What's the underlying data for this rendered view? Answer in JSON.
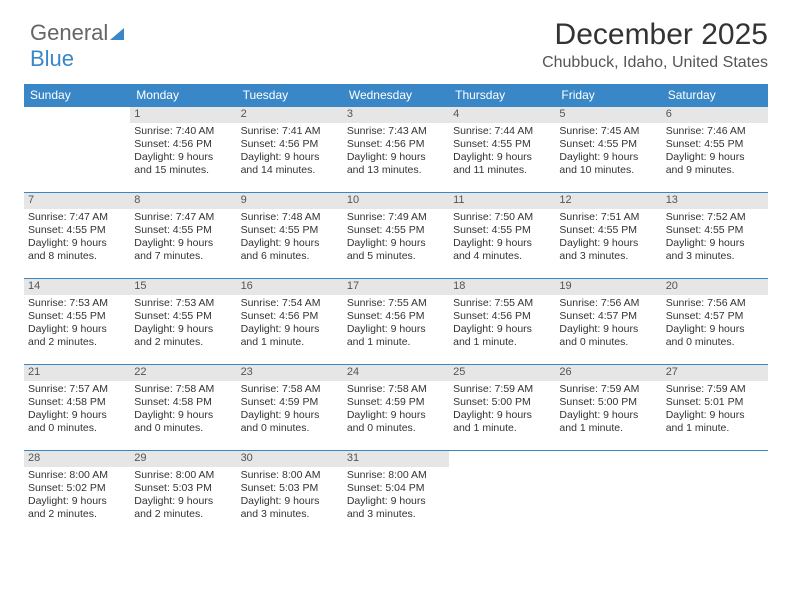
{
  "brand": {
    "part1": "General",
    "part2": "Blue"
  },
  "title": "December 2025",
  "location": "Chubbuck, Idaho, United States",
  "weekdays": [
    "Sunday",
    "Monday",
    "Tuesday",
    "Wednesday",
    "Thursday",
    "Friday",
    "Saturday"
  ],
  "colors": {
    "header_bg": "#3a87c7",
    "header_text": "#ffffff",
    "daynum_bg": "#e6e6e6",
    "border": "#3a87c7",
    "text": "#333333",
    "background": "#ffffff"
  },
  "weeks": [
    [
      null,
      {
        "n": "1",
        "sr": "Sunrise: 7:40 AM",
        "ss": "Sunset: 4:56 PM",
        "dl": "Daylight: 9 hours and 15 minutes."
      },
      {
        "n": "2",
        "sr": "Sunrise: 7:41 AM",
        "ss": "Sunset: 4:56 PM",
        "dl": "Daylight: 9 hours and 14 minutes."
      },
      {
        "n": "3",
        "sr": "Sunrise: 7:43 AM",
        "ss": "Sunset: 4:56 PM",
        "dl": "Daylight: 9 hours and 13 minutes."
      },
      {
        "n": "4",
        "sr": "Sunrise: 7:44 AM",
        "ss": "Sunset: 4:55 PM",
        "dl": "Daylight: 9 hours and 11 minutes."
      },
      {
        "n": "5",
        "sr": "Sunrise: 7:45 AM",
        "ss": "Sunset: 4:55 PM",
        "dl": "Daylight: 9 hours and 10 minutes."
      },
      {
        "n": "6",
        "sr": "Sunrise: 7:46 AM",
        "ss": "Sunset: 4:55 PM",
        "dl": "Daylight: 9 hours and 9 minutes."
      }
    ],
    [
      {
        "n": "7",
        "sr": "Sunrise: 7:47 AM",
        "ss": "Sunset: 4:55 PM",
        "dl": "Daylight: 9 hours and 8 minutes."
      },
      {
        "n": "8",
        "sr": "Sunrise: 7:47 AM",
        "ss": "Sunset: 4:55 PM",
        "dl": "Daylight: 9 hours and 7 minutes."
      },
      {
        "n": "9",
        "sr": "Sunrise: 7:48 AM",
        "ss": "Sunset: 4:55 PM",
        "dl": "Daylight: 9 hours and 6 minutes."
      },
      {
        "n": "10",
        "sr": "Sunrise: 7:49 AM",
        "ss": "Sunset: 4:55 PM",
        "dl": "Daylight: 9 hours and 5 minutes."
      },
      {
        "n": "11",
        "sr": "Sunrise: 7:50 AM",
        "ss": "Sunset: 4:55 PM",
        "dl": "Daylight: 9 hours and 4 minutes."
      },
      {
        "n": "12",
        "sr": "Sunrise: 7:51 AM",
        "ss": "Sunset: 4:55 PM",
        "dl": "Daylight: 9 hours and 3 minutes."
      },
      {
        "n": "13",
        "sr": "Sunrise: 7:52 AM",
        "ss": "Sunset: 4:55 PM",
        "dl": "Daylight: 9 hours and 3 minutes."
      }
    ],
    [
      {
        "n": "14",
        "sr": "Sunrise: 7:53 AM",
        "ss": "Sunset: 4:55 PM",
        "dl": "Daylight: 9 hours and 2 minutes."
      },
      {
        "n": "15",
        "sr": "Sunrise: 7:53 AM",
        "ss": "Sunset: 4:55 PM",
        "dl": "Daylight: 9 hours and 2 minutes."
      },
      {
        "n": "16",
        "sr": "Sunrise: 7:54 AM",
        "ss": "Sunset: 4:56 PM",
        "dl": "Daylight: 9 hours and 1 minute."
      },
      {
        "n": "17",
        "sr": "Sunrise: 7:55 AM",
        "ss": "Sunset: 4:56 PM",
        "dl": "Daylight: 9 hours and 1 minute."
      },
      {
        "n": "18",
        "sr": "Sunrise: 7:55 AM",
        "ss": "Sunset: 4:56 PM",
        "dl": "Daylight: 9 hours and 1 minute."
      },
      {
        "n": "19",
        "sr": "Sunrise: 7:56 AM",
        "ss": "Sunset: 4:57 PM",
        "dl": "Daylight: 9 hours and 0 minutes."
      },
      {
        "n": "20",
        "sr": "Sunrise: 7:56 AM",
        "ss": "Sunset: 4:57 PM",
        "dl": "Daylight: 9 hours and 0 minutes."
      }
    ],
    [
      {
        "n": "21",
        "sr": "Sunrise: 7:57 AM",
        "ss": "Sunset: 4:58 PM",
        "dl": "Daylight: 9 hours and 0 minutes."
      },
      {
        "n": "22",
        "sr": "Sunrise: 7:58 AM",
        "ss": "Sunset: 4:58 PM",
        "dl": "Daylight: 9 hours and 0 minutes."
      },
      {
        "n": "23",
        "sr": "Sunrise: 7:58 AM",
        "ss": "Sunset: 4:59 PM",
        "dl": "Daylight: 9 hours and 0 minutes."
      },
      {
        "n": "24",
        "sr": "Sunrise: 7:58 AM",
        "ss": "Sunset: 4:59 PM",
        "dl": "Daylight: 9 hours and 0 minutes."
      },
      {
        "n": "25",
        "sr": "Sunrise: 7:59 AM",
        "ss": "Sunset: 5:00 PM",
        "dl": "Daylight: 9 hours and 1 minute."
      },
      {
        "n": "26",
        "sr": "Sunrise: 7:59 AM",
        "ss": "Sunset: 5:00 PM",
        "dl": "Daylight: 9 hours and 1 minute."
      },
      {
        "n": "27",
        "sr": "Sunrise: 7:59 AM",
        "ss": "Sunset: 5:01 PM",
        "dl": "Daylight: 9 hours and 1 minute."
      }
    ],
    [
      {
        "n": "28",
        "sr": "Sunrise: 8:00 AM",
        "ss": "Sunset: 5:02 PM",
        "dl": "Daylight: 9 hours and 2 minutes."
      },
      {
        "n": "29",
        "sr": "Sunrise: 8:00 AM",
        "ss": "Sunset: 5:03 PM",
        "dl": "Daylight: 9 hours and 2 minutes."
      },
      {
        "n": "30",
        "sr": "Sunrise: 8:00 AM",
        "ss": "Sunset: 5:03 PM",
        "dl": "Daylight: 9 hours and 3 minutes."
      },
      {
        "n": "31",
        "sr": "Sunrise: 8:00 AM",
        "ss": "Sunset: 5:04 PM",
        "dl": "Daylight: 9 hours and 3 minutes."
      },
      null,
      null,
      null
    ]
  ]
}
